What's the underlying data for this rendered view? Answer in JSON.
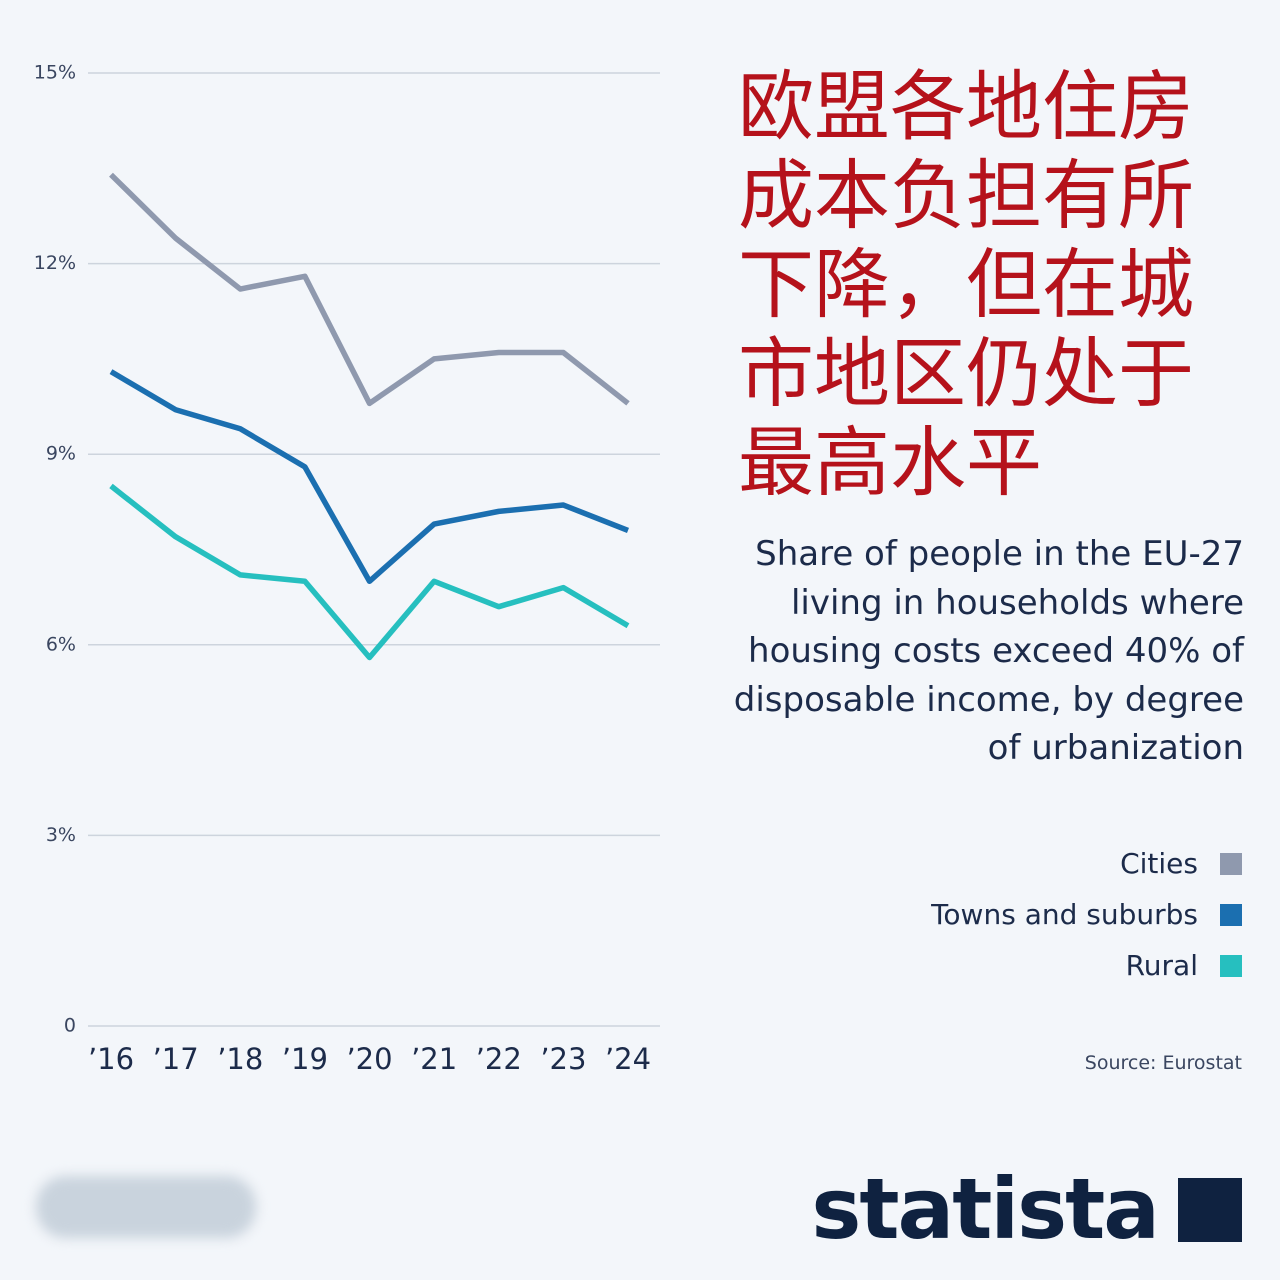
{
  "chart_data": {
    "type": "line",
    "title": "欧盟各地住房成本负担有所下降，但在城市地区仍处于最高水平",
    "subtitle": "Share of people in the EU-27 living in households where housing costs exceed 40% of disposable income, by degree of urbanization",
    "categories": [
      "’16",
      "’17",
      "’18",
      "’19",
      "’20",
      "’21",
      "’22",
      "’23",
      "’24"
    ],
    "series": [
      {
        "name": "Cities",
        "color": "#8f99ae",
        "values": [
          13.4,
          12.4,
          11.6,
          11.8,
          9.8,
          10.5,
          10.6,
          10.6,
          9.8
        ]
      },
      {
        "name": "Towns and suburbs",
        "color": "#1b6fb0",
        "values": [
          10.3,
          9.7,
          9.4,
          8.8,
          7.0,
          7.9,
          8.1,
          8.2,
          7.8
        ]
      },
      {
        "name": "Rural",
        "color": "#26bfbf",
        "values": [
          8.5,
          7.7,
          7.1,
          7.0,
          5.8,
          7.0,
          6.6,
          6.9,
          6.3
        ]
      }
    ],
    "ylim": [
      0,
      15
    ],
    "yticks": [
      0,
      {
        "value": 3,
        "label": "3%"
      },
      {
        "value": 6,
        "label": "6%"
      },
      {
        "value": 9,
        "label": "9%"
      },
      {
        "value": 12,
        "label": "12%"
      },
      {
        "value": 15,
        "label": "15%"
      }
    ],
    "grid": true,
    "source": "Source: Eurostat",
    "logo": "statista"
  }
}
